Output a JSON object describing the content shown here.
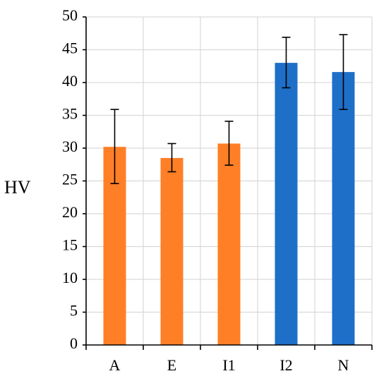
{
  "chart_data": {
    "type": "bar",
    "title": "",
    "xlabel": "",
    "ylabel": "HV",
    "ylim": [
      0,
      50
    ],
    "yticks": [
      0,
      5,
      10,
      15,
      20,
      25,
      30,
      35,
      40,
      45,
      50
    ],
    "grid": true,
    "legend": "none",
    "categories": [
      "A",
      "E",
      "I1",
      "I2",
      "N"
    ],
    "values": [
      30.2,
      28.5,
      30.7,
      43.0,
      41.6
    ],
    "error_low": [
      24.6,
      26.4,
      27.4,
      39.2,
      35.9
    ],
    "error_high": [
      35.9,
      30.7,
      34.1,
      46.9,
      47.3
    ],
    "colors": [
      "#FF7F27",
      "#FF7F27",
      "#FF7F27",
      "#1E6FC8",
      "#1E6FC8"
    ]
  }
}
